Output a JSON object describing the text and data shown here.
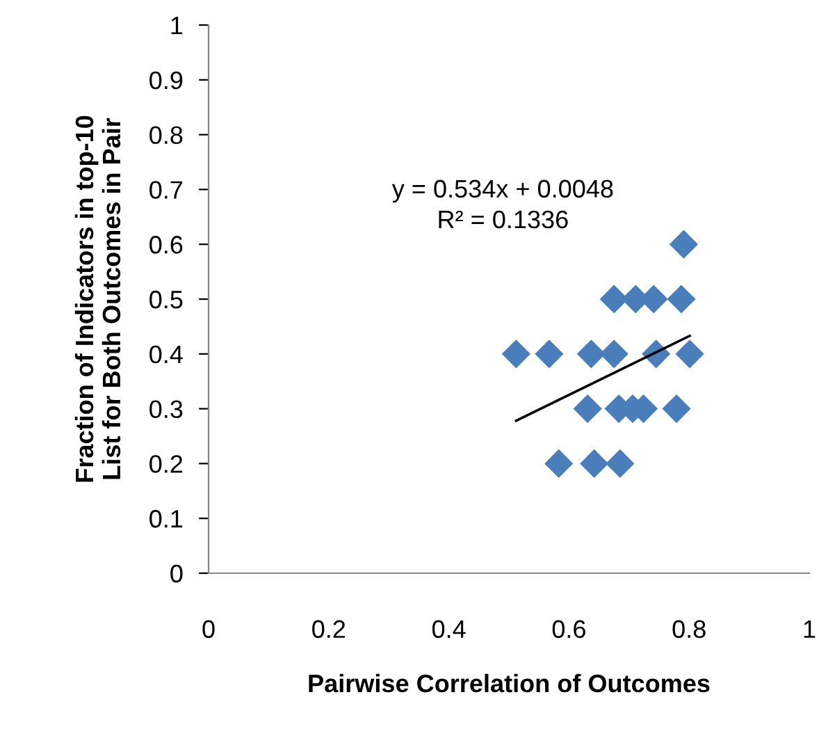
{
  "chart_data": {
    "type": "scatter",
    "xlabel": "Pairwise Correlation of Outcomes",
    "ylabel": "Fraction of Indicators in top-10\nList for Both Outcomes in Pair",
    "xlim": [
      0,
      1
    ],
    "ylim": [
      0,
      1
    ],
    "xticks": [
      0,
      0.2,
      0.4,
      0.6,
      0.8,
      1
    ],
    "yticks": [
      0,
      0.1,
      0.2,
      0.3,
      0.4,
      0.5,
      0.6,
      0.7,
      0.8,
      0.9,
      1
    ],
    "grid": false,
    "series": [
      {
        "marker": "diamond",
        "color": "#4a7ebb",
        "x": [
          0.791,
          0.675,
          0.711,
          0.741,
          0.787,
          0.512,
          0.567,
          0.637,
          0.667,
          0.675,
          0.745,
          0.801,
          0.631,
          0.671,
          0.683,
          0.706,
          0.724,
          0.779,
          0.583,
          0.642,
          0.685
        ],
        "values": [
          0.6,
          0.5,
          0.5,
          0.5,
          0.5,
          0.4,
          0.4,
          0.4,
          null,
          0.4,
          0.4,
          0.4,
          0.3,
          null,
          0.3,
          0.3,
          0.3,
          0.3,
          0.2,
          0.2,
          0.2
        ]
      },
      {
        "type": "line",
        "marker": "none",
        "color": "#000000",
        "x": [
          0.512,
          0.801
        ],
        "values": [
          0.278,
          0.433
        ]
      }
    ],
    "annotations": [
      "y = 0.534x + 0.0048\nR² = 0.1336"
    ]
  }
}
